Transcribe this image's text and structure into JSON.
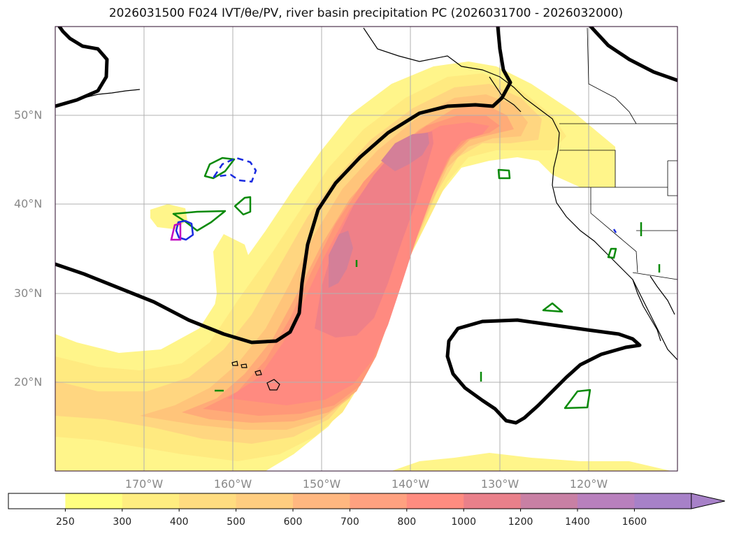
{
  "title": "2026031500 F024 IVT/θe/PV, river basin precipitation PC (2026031700 - 2026032000)",
  "map": {
    "lat_labels": [
      "50°N",
      "40°N",
      "30°N",
      "20°N"
    ],
    "lon_labels": [
      "170°W",
      "160°W",
      "150°W",
      "140°W",
      "130°W",
      "120°W"
    ],
    "lon_range": [
      -180,
      -110
    ],
    "lat_range": [
      10,
      60
    ]
  },
  "colorbar": {
    "levels": [
      "250",
      "300",
      "400",
      "500",
      "600",
      "700",
      "800",
      "1000",
      "1200",
      "1400",
      "1600"
    ],
    "colors": [
      "#ffffff",
      "#ffff80",
      "#ffed80",
      "#ffdc80",
      "#ffcd80",
      "#ffb780",
      "#ffa180",
      "#ff8c80",
      "#e9808a",
      "#c880a4",
      "#b880bd",
      "#a781c8"
    ]
  },
  "ivt_colors": {
    "c250": "#fff58a",
    "c300": "#ffea80",
    "c400": "#ffd680",
    "c500": "#ffc47a",
    "c600": "#ffab78",
    "c700": "#ff9878",
    "c800": "#ff8a80",
    "c1000": "#ef8088",
    "c1200": "#d47f98"
  },
  "contour_colors": {
    "theta": "#000000",
    "green": "#0a8a0a",
    "blue": "#1a2be0",
    "magenta": "#c000c0",
    "coast": "#000000"
  }
}
